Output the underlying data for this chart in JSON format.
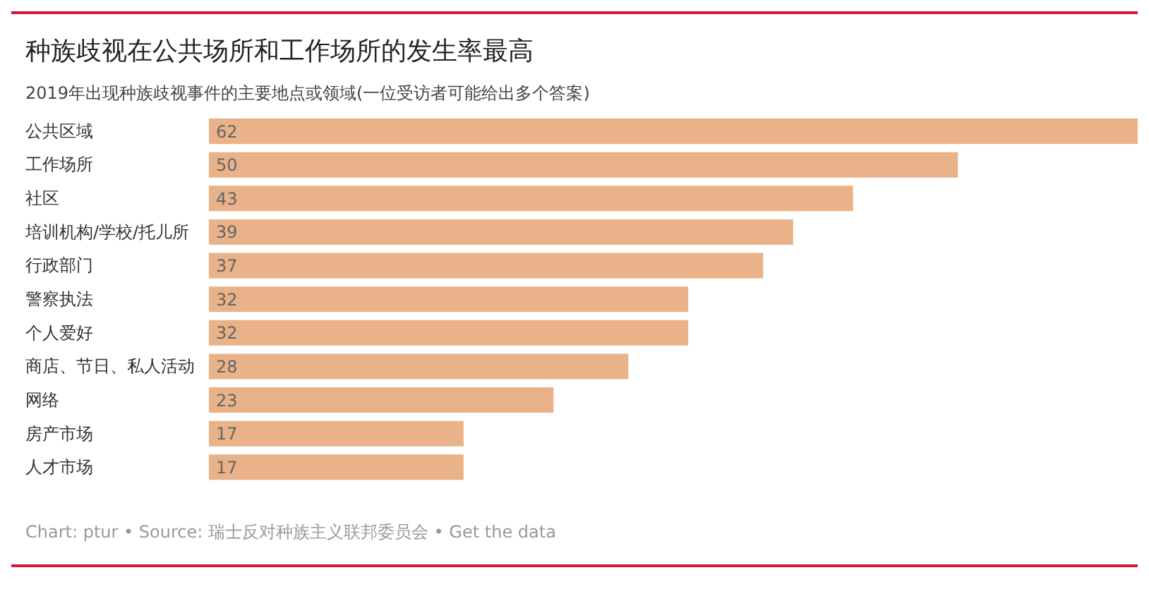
{
  "chart_data": {
    "type": "bar",
    "orientation": "horizontal",
    "title": "种族歧视在公共场所和工作场所的发生率最高",
    "subtitle": "2019年出现种族歧视事件的主要地点或领域(一位受访者可能给出多个答案)",
    "categories": [
      "公共区域",
      "工作场所",
      "社区",
      "培训机构/学校/托儿所",
      "行政部门",
      "警察执法",
      "个人爱好",
      "商店、节日、私人活动",
      "网络",
      "房产市场",
      "人才市场"
    ],
    "values": [
      62,
      50,
      43,
      39,
      37,
      32,
      32,
      28,
      23,
      17,
      17
    ],
    "color": "#e9b289",
    "data_labels": true,
    "annotations": [
      "Chart: ptur • Source: 瑞士反对种族主义联邦委员会 • Get the data"
    ]
  }
}
